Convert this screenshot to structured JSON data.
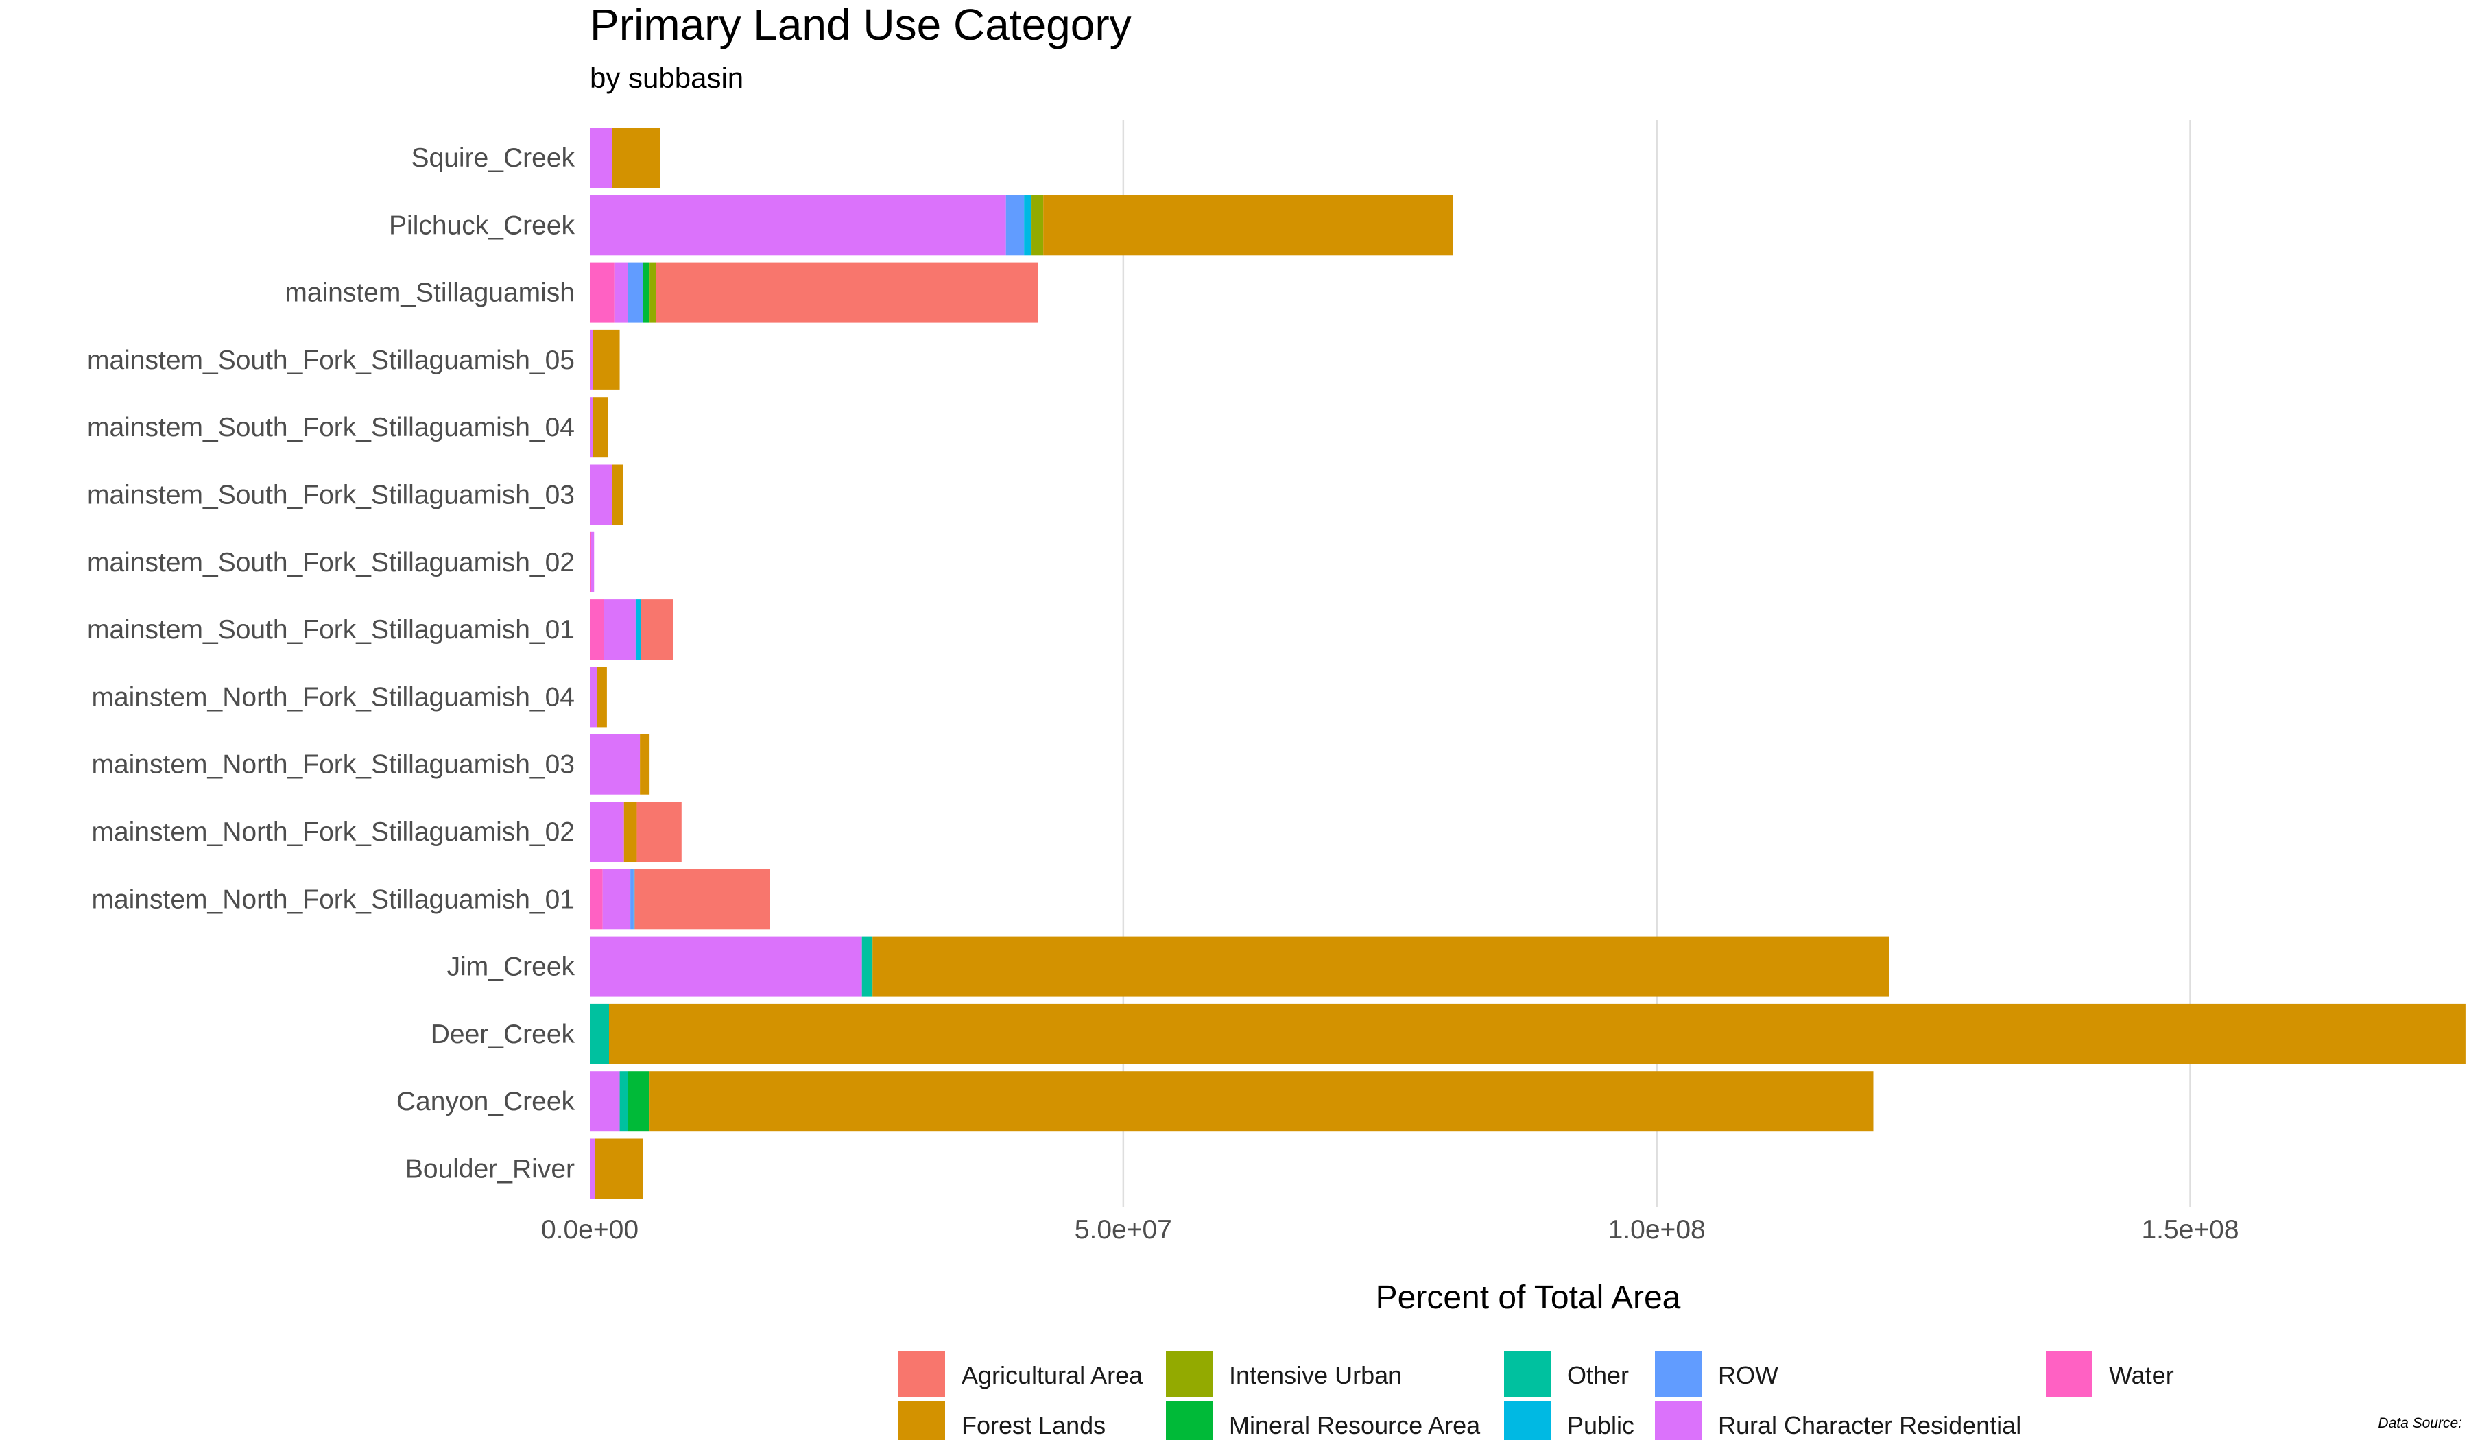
{
  "chart_data": {
    "type": "bar",
    "orientation": "horizontal",
    "stacked": true,
    "title": "Primary Land Use Category",
    "subtitle": "by subbasin",
    "xlabel": "Percent of Total Area",
    "ylabel": "",
    "caption": "Data Source:",
    "xlim": [
      0,
      176000000
    ],
    "xticks": [
      {
        "value": 0,
        "label": "0.0e+00"
      },
      {
        "value": 50000000,
        "label": "5.0e+07"
      },
      {
        "value": 100000000,
        "label": "1.0e+08"
      },
      {
        "value": 150000000,
        "label": "1.5e+08"
      }
    ],
    "grid": true,
    "legend_position": "bottom",
    "categories": [
      "Squire_Creek",
      "Pilchuck_Creek",
      "mainstem_Stillaguamish",
      "mainstem_South_Fork_Stillaguamish_05",
      "mainstem_South_Fork_Stillaguamish_04",
      "mainstem_South_Fork_Stillaguamish_03",
      "mainstem_South_Fork_Stillaguamish_02",
      "mainstem_South_Fork_Stillaguamish_01",
      "mainstem_North_Fork_Stillaguamish_04",
      "mainstem_North_Fork_Stillaguamish_03",
      "mainstem_North_Fork_Stillaguamish_02",
      "mainstem_North_Fork_Stillaguamish_01",
      "Jim_Creek",
      "Deer_Creek",
      "Canyon_Creek",
      "Boulder_River"
    ],
    "series": [
      {
        "name": "Water",
        "color": "#FF61C3",
        "values": [
          0,
          0,
          2300000,
          0,
          0,
          0,
          100000,
          1300000,
          0,
          0,
          0,
          1200000,
          0,
          0,
          0,
          0
        ]
      },
      {
        "name": "Rural Character Residential",
        "color": "#DB72FB",
        "values": [
          2100000,
          39000000,
          1300000,
          300000,
          300000,
          2100000,
          300000,
          3000000,
          700000,
          4700000,
          3200000,
          2600000,
          25500000,
          0,
          2800000,
          500000
        ]
      },
      {
        "name": "ROW",
        "color": "#619CFF",
        "values": [
          0,
          1700000,
          1400000,
          0,
          0,
          0,
          0,
          0,
          0,
          0,
          0,
          300000,
          0,
          0,
          0,
          0
        ]
      },
      {
        "name": "Public",
        "color": "#00B9E3",
        "values": [
          0,
          700000,
          0,
          0,
          0,
          0,
          0,
          500000,
          0,
          0,
          0,
          100000,
          0,
          0,
          0,
          0
        ]
      },
      {
        "name": "Other",
        "color": "#00C19F",
        "values": [
          0,
          0,
          0,
          0,
          0,
          0,
          0,
          0,
          0,
          0,
          0,
          0,
          1000000,
          1800000,
          800000,
          0
        ]
      },
      {
        "name": "Mineral Resource Area",
        "color": "#00BA38",
        "values": [
          0,
          0,
          600000,
          0,
          0,
          0,
          0,
          0,
          0,
          0,
          0,
          0,
          0,
          0,
          2000000,
          0
        ]
      },
      {
        "name": "Intensive Urban",
        "color": "#93AA00",
        "values": [
          0,
          1100000,
          600000,
          0,
          0,
          0,
          0,
          0,
          0,
          0,
          0,
          0,
          0,
          0,
          0,
          0
        ]
      },
      {
        "name": "Forest Lands",
        "color": "#D39200",
        "values": [
          4500000,
          38400000,
          0,
          2500000,
          1400000,
          1000000,
          0,
          0,
          900000,
          900000,
          1200000,
          0,
          95300000,
          174000000,
          114700000,
          4500000
        ]
      },
      {
        "name": "Agricultural Area",
        "color": "#F8766D",
        "values": [
          0,
          0,
          35800000,
          0,
          0,
          0,
          0,
          3000000,
          0,
          0,
          4200000,
          12700000,
          0,
          0,
          0,
          0
        ]
      }
    ],
    "legend": [
      {
        "name": "Agricultural Area",
        "color": "#F8766D"
      },
      {
        "name": "Forest Lands",
        "color": "#D39200"
      },
      {
        "name": "Intensive Urban",
        "color": "#93AA00"
      },
      {
        "name": "Mineral Resource Area",
        "color": "#00BA38"
      },
      {
        "name": "Other",
        "color": "#00C19F"
      },
      {
        "name": "Public",
        "color": "#00B9E3"
      },
      {
        "name": "ROW",
        "color": "#619CFF"
      },
      {
        "name": "Rural Character Residential",
        "color": "#DB72FB"
      },
      {
        "name": "Water",
        "color": "#FF61C3"
      }
    ]
  }
}
